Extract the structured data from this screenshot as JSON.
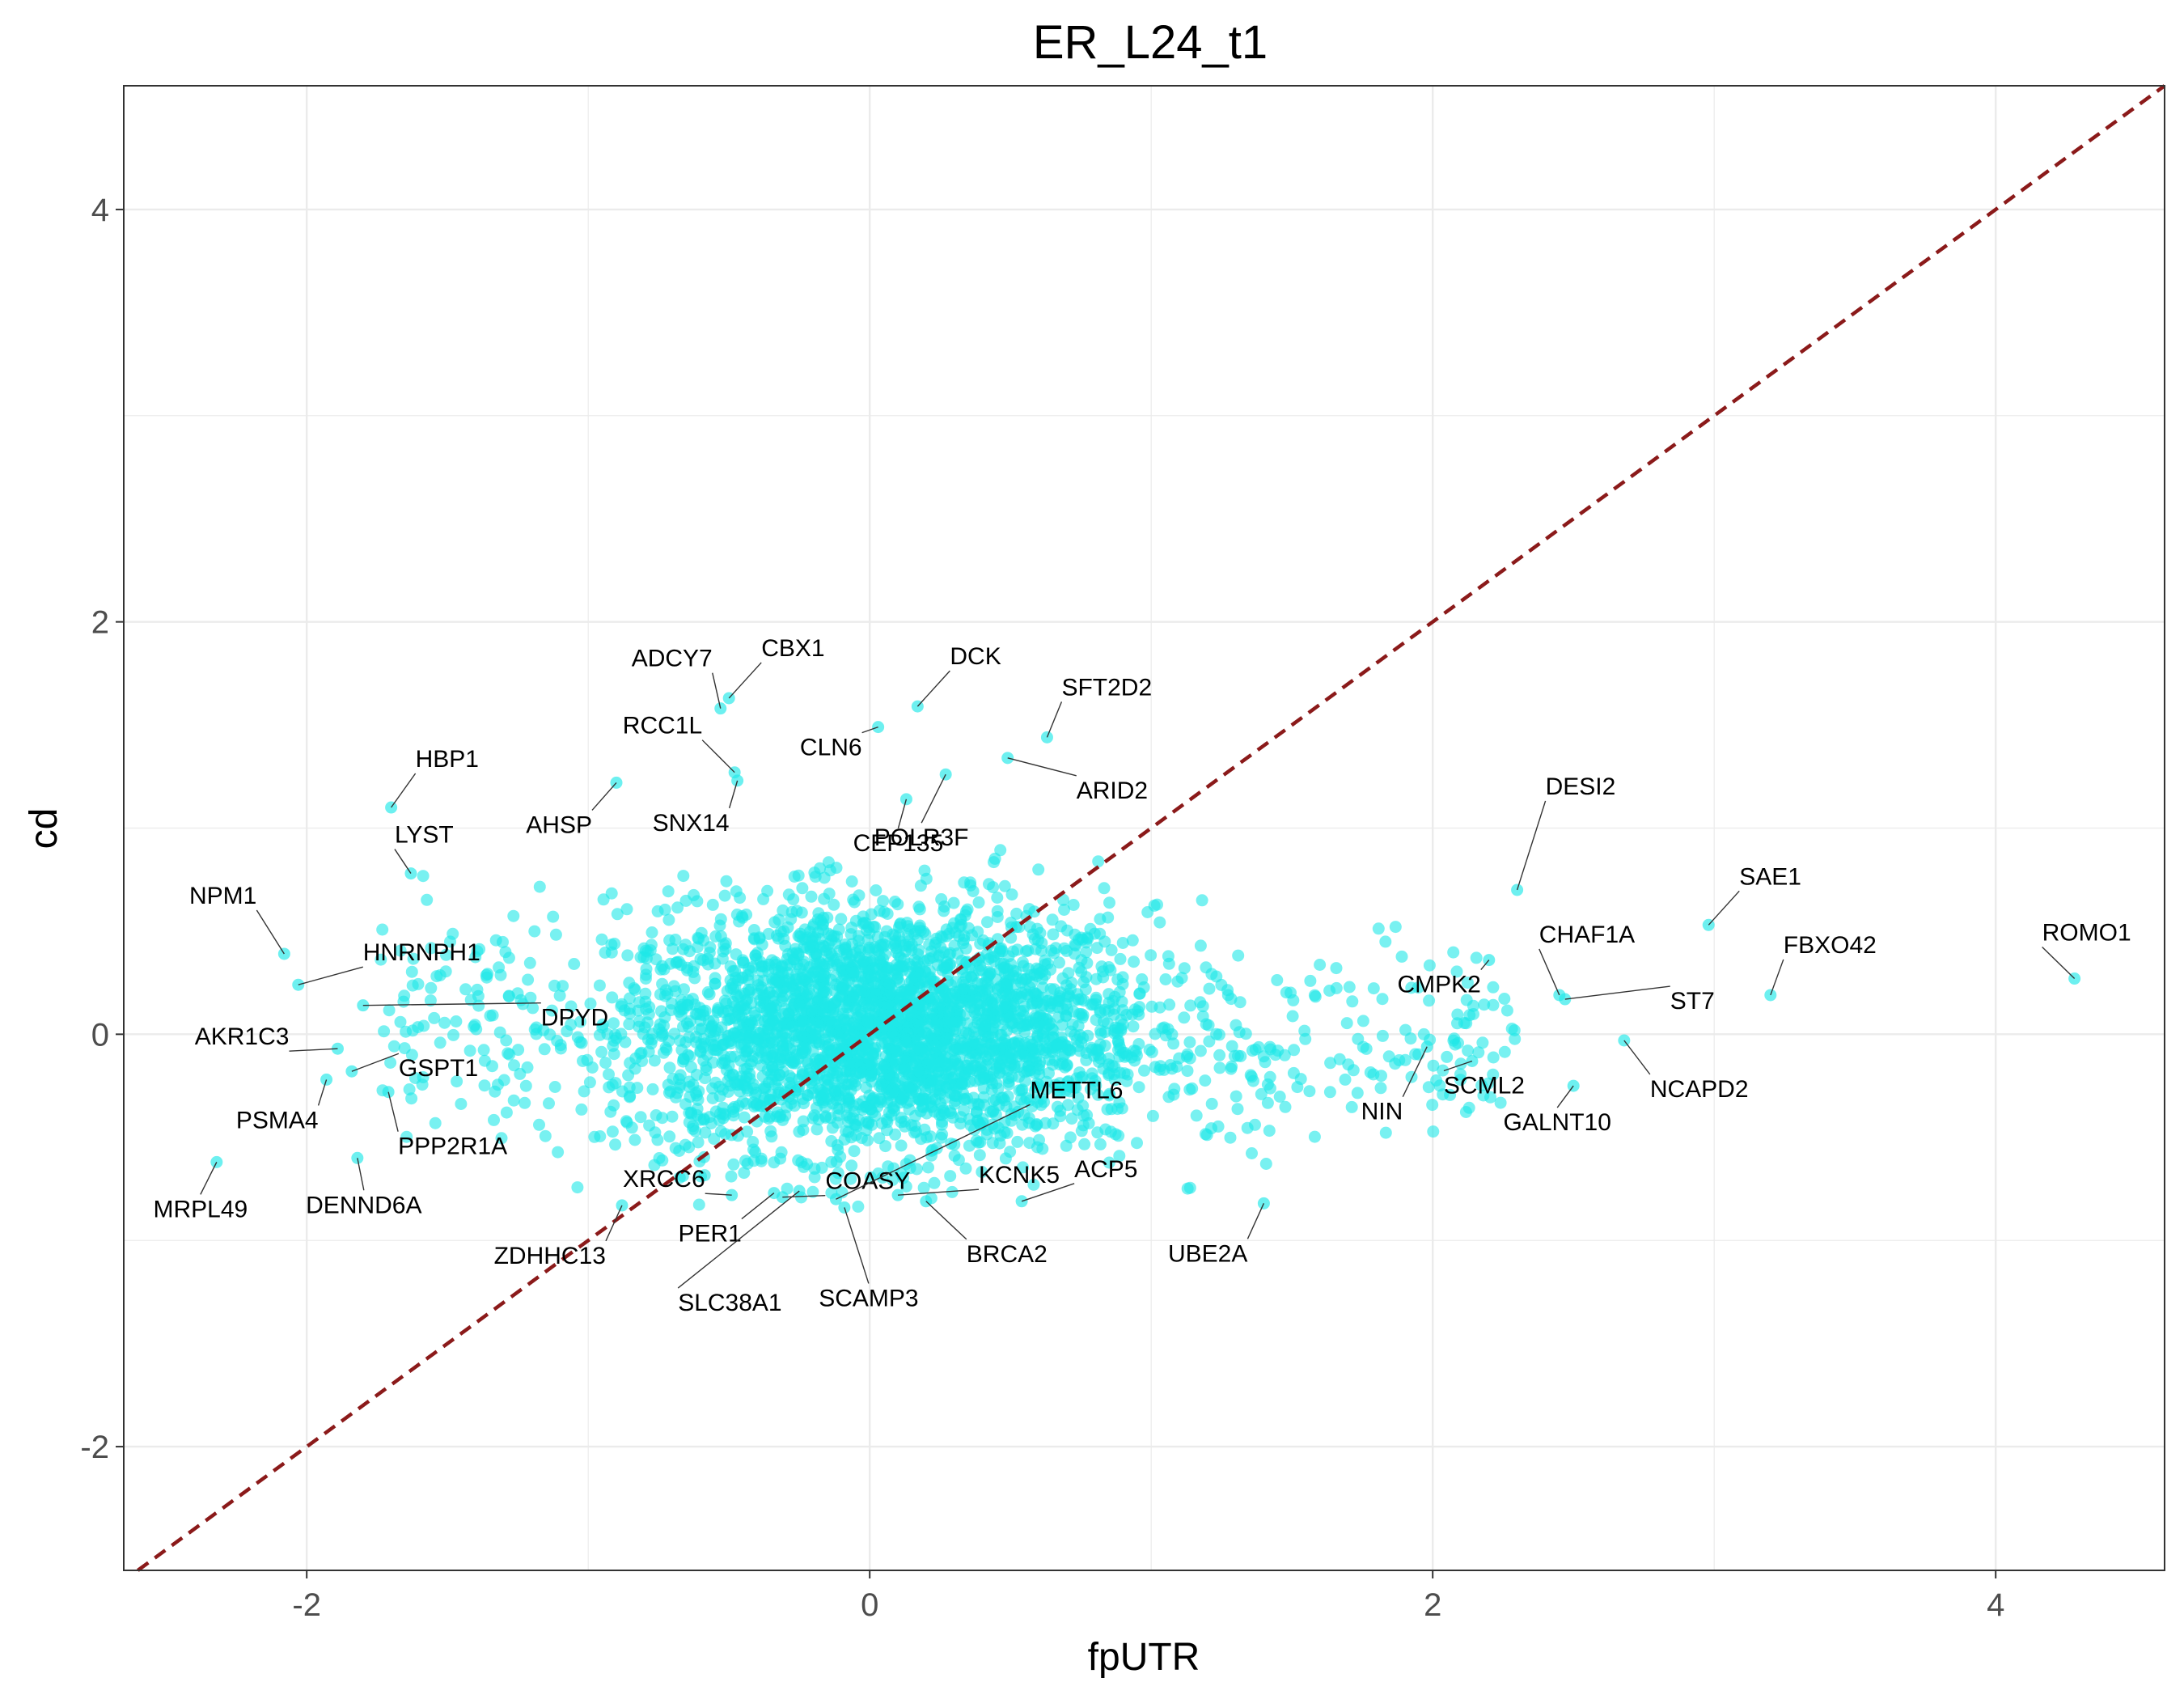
{
  "chart_data": {
    "type": "scatter",
    "title": "ER_L24_t1",
    "xlabel": "fpUTR",
    "ylabel": "cd",
    "xlim": [
      -2.65,
      4.6
    ],
    "ylim": [
      -2.6,
      4.6
    ],
    "x_ticks": [
      -2,
      0,
      2,
      4
    ],
    "y_ticks": [
      -2,
      0,
      2,
      4
    ],
    "x_tick_labels": [
      "-2",
      "0",
      "2",
      "4"
    ],
    "y_tick_labels": [
      "-2",
      "0",
      "2",
      "4"
    ],
    "grid": true,
    "legend": "none",
    "point_color": "#1ee8e8",
    "reference_line": {
      "type": "identity",
      "slope": 1,
      "intercept": 0,
      "color": "#8b1a1a",
      "style": "dashed"
    },
    "labeled_points": [
      {
        "label": "ADCY7",
        "x": -0.53,
        "y": 1.58
      },
      {
        "label": "CBX1",
        "x": -0.5,
        "y": 1.63
      },
      {
        "label": "DCK",
        "x": 0.17,
        "y": 1.59
      },
      {
        "label": "SFT2D2",
        "x": 0.63,
        "y": 1.44
      },
      {
        "label": "RCC1L",
        "x": -0.48,
        "y": 1.27
      },
      {
        "label": "CLN6",
        "x": 0.03,
        "y": 1.49
      },
      {
        "label": "ARID2",
        "x": 0.49,
        "y": 1.34
      },
      {
        "label": "HBP1",
        "x": -1.7,
        "y": 1.1
      },
      {
        "label": "AHSP",
        "x": -0.9,
        "y": 1.22
      },
      {
        "label": "SNX14",
        "x": -0.47,
        "y": 1.23
      },
      {
        "label": "CEP135",
        "x": 0.13,
        "y": 1.14
      },
      {
        "label": "POLR3F",
        "x": 0.27,
        "y": 1.26
      },
      {
        "label": "LYST",
        "x": -1.63,
        "y": 0.78
      },
      {
        "label": "NPM1",
        "x": -2.08,
        "y": 0.39
      },
      {
        "label": "HNRNPH1",
        "x": -2.03,
        "y": 0.24
      },
      {
        "label": "DPYD",
        "x": -1.8,
        "y": 0.14
      },
      {
        "label": "AKR1C3",
        "x": -1.89,
        "y": -0.07
      },
      {
        "label": "GSPT1",
        "x": -1.84,
        "y": -0.18
      },
      {
        "label": "PSMA4",
        "x": -1.93,
        "y": -0.22
      },
      {
        "label": "PPP2R1A",
        "x": -1.71,
        "y": -0.28
      },
      {
        "label": "MRPL49",
        "x": -2.32,
        "y": -0.62
      },
      {
        "label": "DENND6A",
        "x": -1.82,
        "y": -0.6
      },
      {
        "label": "XRCC6",
        "x": -0.49,
        "y": -0.78
      },
      {
        "label": "COASY",
        "x": -0.31,
        "y": -0.79
      },
      {
        "label": "KCNK5",
        "x": 0.1,
        "y": -0.78
      },
      {
        "label": "ACP5",
        "x": 0.54,
        "y": -0.81
      },
      {
        "label": "METTL6",
        "x": -0.12,
        "y": -0.8
      },
      {
        "label": "ZDHHC13",
        "x": -0.88,
        "y": -0.83
      },
      {
        "label": "PER1",
        "x": -0.34,
        "y": -0.77
      },
      {
        "label": "SLC38A1",
        "x": -0.25,
        "y": -0.76
      },
      {
        "label": "SCAMP3",
        "x": -0.09,
        "y": -0.84
      },
      {
        "label": "BRCA2",
        "x": 0.2,
        "y": -0.81
      },
      {
        "label": "UBE2A",
        "x": 1.4,
        "y": -0.82
      },
      {
        "label": "DESI2",
        "x": 2.3,
        "y": 0.7
      },
      {
        "label": "SAE1",
        "x": 2.98,
        "y": 0.53
      },
      {
        "label": "CHAF1A",
        "x": 2.45,
        "y": 0.19
      },
      {
        "label": "CMPK2",
        "x": 2.2,
        "y": 0.36
      },
      {
        "label": "ST7",
        "x": 2.47,
        "y": 0.17
      },
      {
        "label": "FBXO42",
        "x": 3.2,
        "y": 0.19
      },
      {
        "label": "ROMO1",
        "x": 4.28,
        "y": 0.27
      },
      {
        "label": "SCML2",
        "x": 2.14,
        "y": -0.13
      },
      {
        "label": "NIN",
        "x": 1.98,
        "y": -0.06
      },
      {
        "label": "NCAPD2",
        "x": 2.68,
        "y": -0.03
      },
      {
        "label": "GALNT10",
        "x": 2.5,
        "y": -0.25
      }
    ]
  }
}
